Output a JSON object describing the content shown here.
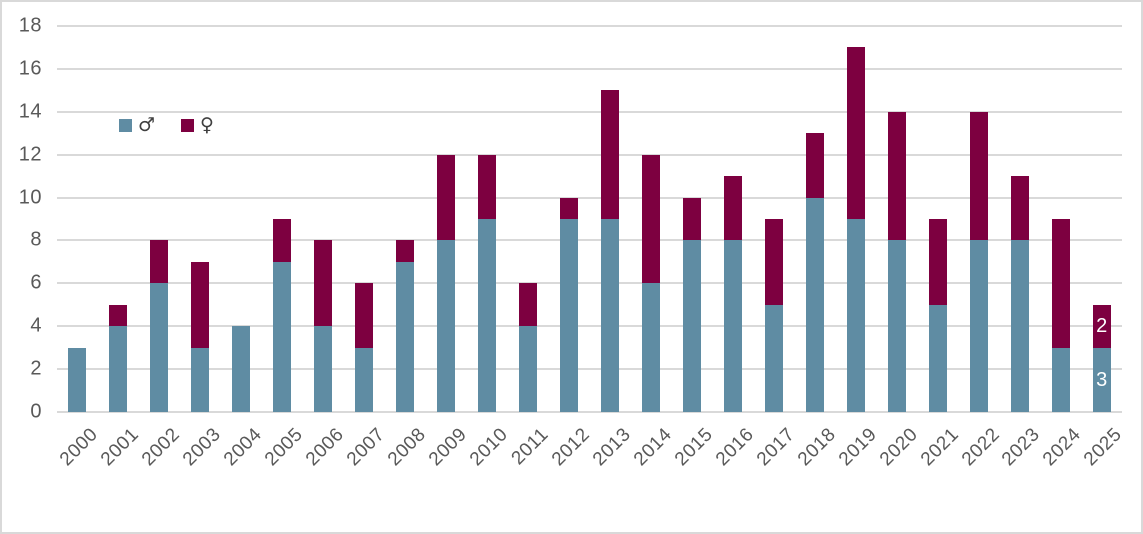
{
  "chart_data": {
    "type": "bar",
    "stacked": true,
    "title": "",
    "categories": [
      "2000",
      "2001",
      "2002",
      "2003",
      "2004",
      "2005",
      "2006",
      "2007",
      "2008",
      "2009",
      "2010",
      "2011",
      "2012",
      "2013",
      "2014",
      "2015",
      "2016",
      "2017",
      "2018",
      "2019",
      "2020",
      "2021",
      "2022",
      "2023",
      "2024",
      "2025"
    ],
    "series": [
      {
        "id": "male",
        "name": "♂",
        "color": "#5f8ca3",
        "values": [
          3,
          4,
          6,
          3,
          4,
          7,
          4,
          3,
          7,
          8,
          9,
          4,
          9,
          9,
          6,
          8,
          8,
          5,
          10,
          9,
          8,
          5,
          8,
          8,
          3,
          3
        ]
      },
      {
        "id": "female",
        "name": "♀",
        "color": "#7d0040",
        "values": [
          0,
          1,
          2,
          4,
          0,
          2,
          4,
          3,
          1,
          4,
          3,
          2,
          1,
          6,
          6,
          2,
          3,
          4,
          3,
          8,
          6,
          4,
          6,
          3,
          6,
          2
        ]
      }
    ],
    "ylim": [
      0,
      18
    ],
    "ytick_step": 2,
    "grid": true,
    "legend_position": "inside-top-left",
    "data_labels": [
      {
        "category": "2025",
        "series": 0,
        "text": "3"
      },
      {
        "category": "2025",
        "series": 1,
        "text": "2"
      }
    ]
  },
  "colors": {
    "male": "#5f8ca3",
    "female": "#7d0040",
    "gridline": "#d9d9d9",
    "axis_text": "#595959",
    "legend_text": "#3f3f3f",
    "data_label_text": "#ffffff",
    "border": "#d9d9d9",
    "background": "#ffffff"
  }
}
